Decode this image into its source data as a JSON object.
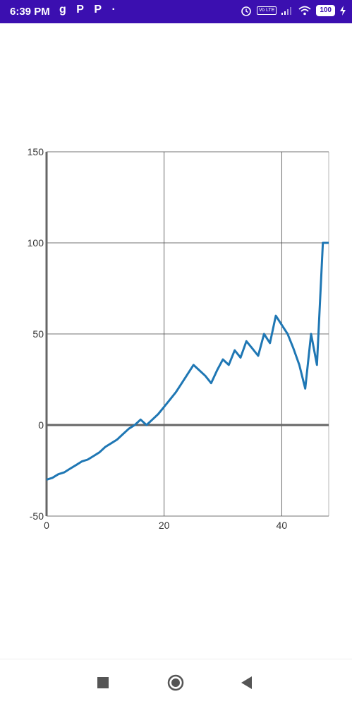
{
  "status_bar": {
    "time": "6:39 PM",
    "app_icons": [
      "g",
      "P",
      "P",
      "·"
    ],
    "battery": "100",
    "volte": "Vo LTE",
    "bg_color": "#3b0fb0"
  },
  "chart_data": {
    "type": "line",
    "title": "",
    "xlabel": "",
    "ylabel": "",
    "xlim": [
      0,
      48
    ],
    "ylim": [
      -50,
      150
    ],
    "xticks": [
      0,
      20,
      40
    ],
    "yticks": [
      -50,
      0,
      50,
      100,
      150
    ],
    "grid": true,
    "line_color": "#1f77b4",
    "series": [
      {
        "x": [
          0,
          1,
          2,
          3,
          4,
          5,
          6,
          7,
          8,
          9,
          10,
          11,
          12,
          13,
          14,
          15,
          16,
          17,
          18,
          19,
          20,
          21,
          22,
          23,
          24,
          25,
          26,
          27,
          28,
          29,
          30,
          31,
          32,
          33,
          34,
          35,
          36,
          37,
          38,
          39,
          40,
          41,
          42,
          43,
          44,
          45,
          46,
          47,
          47.3,
          48
        ],
        "y": [
          -30,
          -29,
          -27,
          -26,
          -24,
          -22,
          -20,
          -19,
          -17,
          -15,
          -12,
          -10,
          -8,
          -5,
          -2,
          0,
          3,
          0,
          3,
          6,
          10,
          14,
          18,
          23,
          28,
          33,
          30,
          27,
          23,
          30,
          36,
          33,
          41,
          37,
          46,
          42,
          38,
          50,
          45,
          60,
          55,
          50,
          42,
          33,
          20,
          50,
          33,
          100,
          100,
          100
        ]
      }
    ]
  },
  "nav_bar": {
    "recents_icon": "square-icon",
    "home_icon": "circle-icon",
    "back_icon": "back-triangle-icon"
  }
}
